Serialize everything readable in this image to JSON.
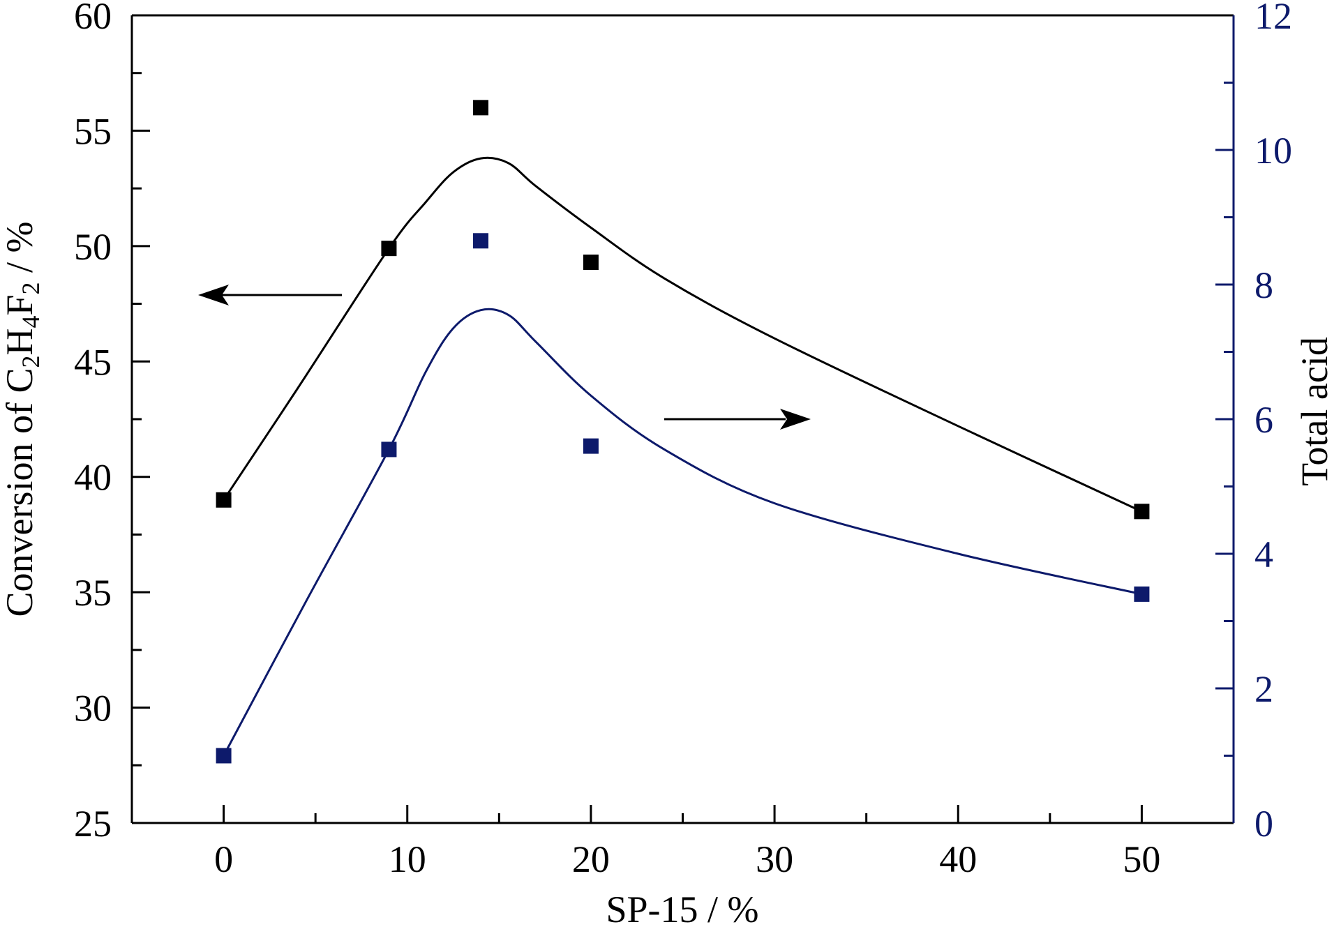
{
  "chart_data": {
    "type": "scatter",
    "xlabel": "SP-15 / %",
    "ylabel_left": {
      "base": "Conversion of C",
      "sub1": "2",
      "mid1": "H",
      "sub2": "4",
      "mid2": "F",
      "sub3": "2",
      "tail": " / %"
    },
    "ylabel_right": "Total acid",
    "xlim": [
      -5,
      55
    ],
    "ylim_left": [
      25,
      60
    ],
    "ylim_right": [
      0,
      12
    ],
    "x_ticks": [
      "0",
      "10",
      "20",
      "30",
      "40",
      "50"
    ],
    "y_left_ticks": [
      "25",
      "30",
      "35",
      "40",
      "45",
      "50",
      "55",
      "60"
    ],
    "y_right_ticks": [
      "0",
      "2",
      "4",
      "6",
      "8",
      "10",
      "12"
    ],
    "series": [
      {
        "axis": "left",
        "color": "#000000",
        "points": [
          [
            0,
            39.0
          ],
          [
            9,
            49.9
          ],
          [
            14,
            56.0
          ],
          [
            20,
            49.3
          ],
          [
            50,
            38.5
          ]
        ],
        "curve": [
          [
            0,
            39.0
          ],
          [
            4,
            43.8
          ],
          [
            9,
            49.9
          ],
          [
            11,
            51.9
          ],
          [
            12.5,
            53.2
          ],
          [
            14,
            53.8
          ],
          [
            15.5,
            53.6
          ],
          [
            17,
            52.6
          ],
          [
            20,
            50.8
          ],
          [
            24,
            48.6
          ],
          [
            30,
            46.0
          ],
          [
            40,
            42.2
          ],
          [
            50,
            38.5
          ]
        ]
      },
      {
        "axis": "right",
        "color": "#0d1a6b",
        "points": [
          [
            0,
            1.0
          ],
          [
            9,
            5.55
          ],
          [
            14,
            8.65
          ],
          [
            20,
            5.6
          ],
          [
            50,
            3.4
          ]
        ],
        "curve": [
          [
            0,
            1.0
          ],
          [
            4.5,
            3.3
          ],
          [
            9,
            5.55
          ],
          [
            11,
            6.7
          ],
          [
            12.5,
            7.35
          ],
          [
            14,
            7.62
          ],
          [
            15.5,
            7.55
          ],
          [
            17,
            7.15
          ],
          [
            20,
            6.35
          ],
          [
            24,
            5.55
          ],
          [
            30,
            4.75
          ],
          [
            40,
            4.0
          ],
          [
            50,
            3.4
          ]
        ]
      }
    ],
    "annotations": [
      {
        "type": "arrow",
        "direction": "left",
        "points_to": "left-axis"
      },
      {
        "type": "arrow",
        "direction": "right",
        "points_to": "right-axis"
      }
    ]
  }
}
